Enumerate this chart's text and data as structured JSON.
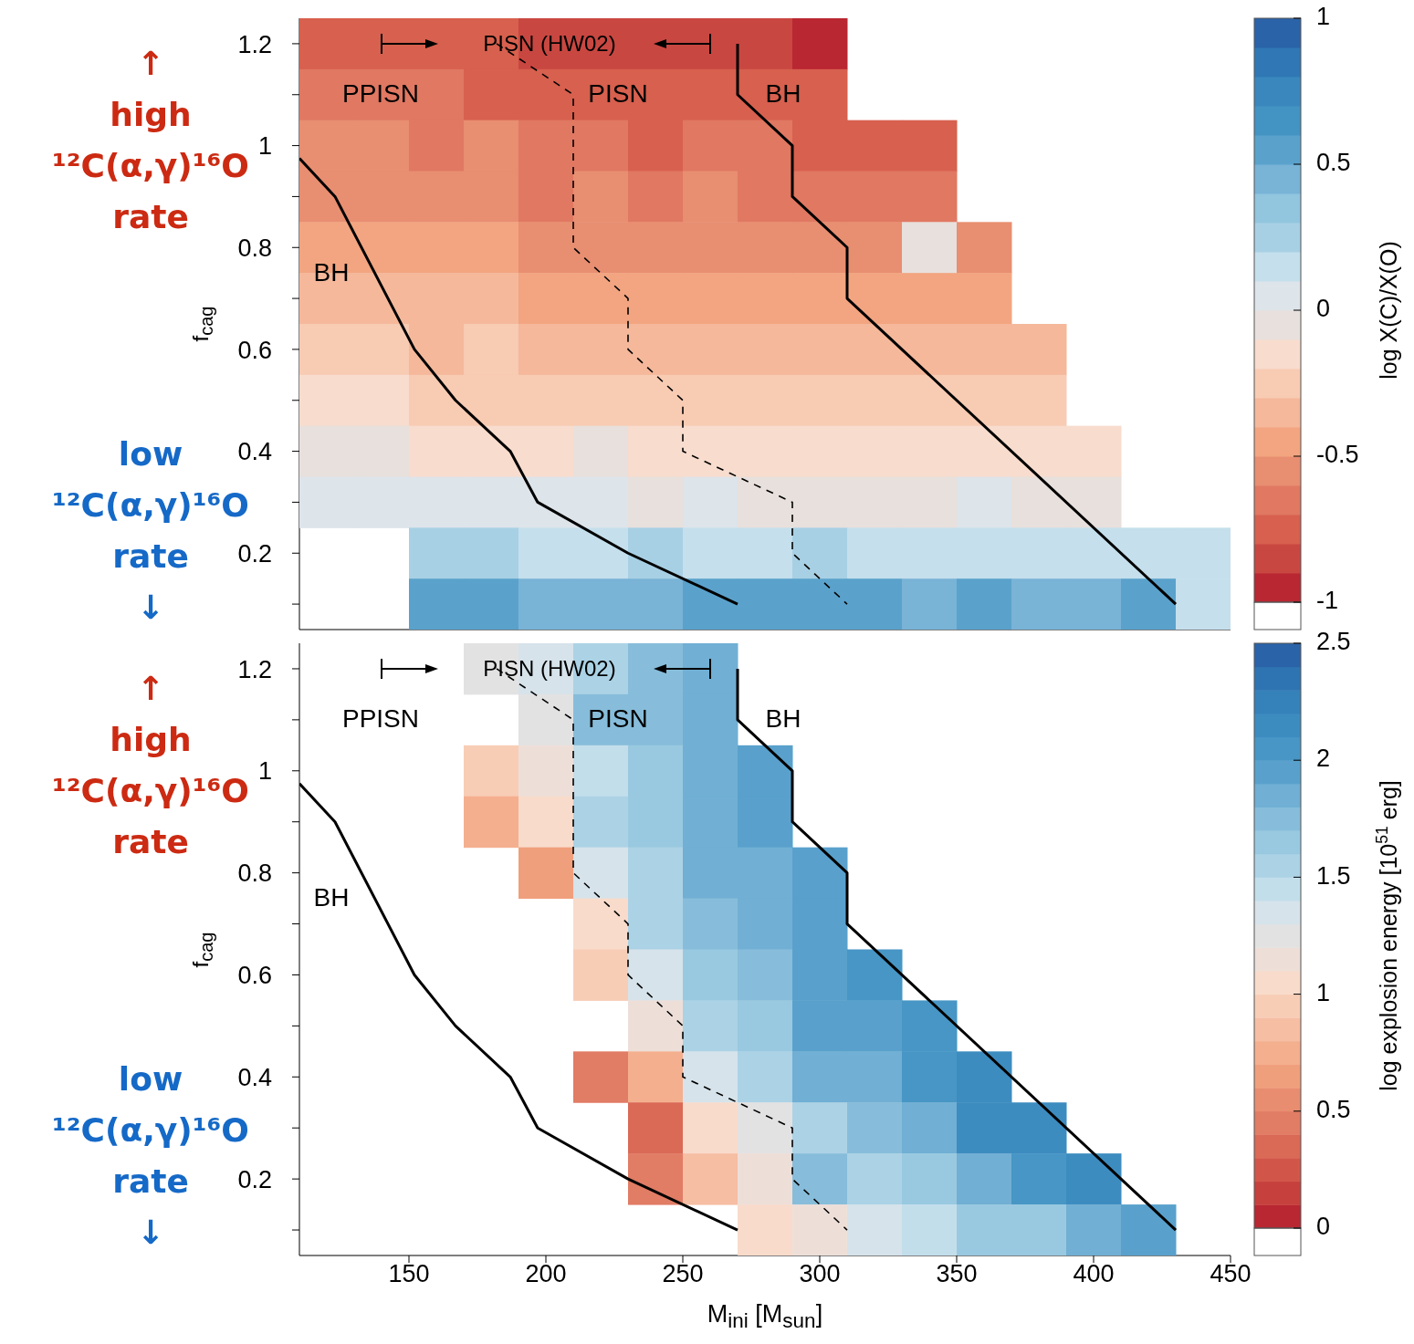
{
  "chart_data": [
    {
      "type": "heatmap",
      "ylabel": "f$_{cag}$",
      "clabel": "log X(C)/X(O)",
      "clim": [
        -1,
        1
      ],
      "cticks": [
        -1,
        -0.5,
        0,
        0.5,
        1
      ],
      "xlim": [
        110,
        450
      ],
      "ylim": [
        0.05,
        1.25
      ],
      "xticks": [
        150,
        200,
        250,
        300,
        350,
        400,
        450
      ],
      "yticks": [
        {
          "value": 0.1,
          "label": null
        },
        0.2,
        {
          "value": 0.3,
          "label": null
        },
        0.4,
        {
          "value": 0.5,
          "label": null
        },
        0.6,
        {
          "value": 0.7,
          "label": null
        },
        0.8,
        {
          "value": 0.9,
          "label": null
        },
        1,
        {
          "value": 1.1,
          "label": null
        },
        1.2
      ],
      "tick_labels": "y",
      "x": [
        120,
        140,
        160,
        180,
        200,
        220,
        240,
        260,
        280,
        300,
        320,
        340,
        360,
        380,
        400,
        420,
        440
      ],
      "y": [
        1.2,
        1.1,
        1.0,
        0.9,
        0.8,
        0.7,
        0.6,
        0.5,
        0.4,
        0.3,
        0.2,
        0.1
      ],
      "cells": [
        [
          -0.75,
          -0.75,
          -0.75,
          -0.75,
          -0.85,
          -0.85,
          -0.85,
          -0.85,
          -0.85,
          -0.95,
          null,
          null,
          null,
          null,
          null,
          null,
          null
        ],
        [
          -0.65,
          -0.65,
          -0.65,
          -0.75,
          -0.75,
          -0.75,
          -0.75,
          -0.75,
          -0.75,
          -0.75,
          null,
          null,
          null,
          null,
          null,
          null,
          null
        ],
        [
          -0.55,
          -0.55,
          -0.65,
          -0.55,
          -0.65,
          -0.65,
          -0.75,
          -0.65,
          -0.65,
          -0.75,
          -0.75,
          -0.75,
          null,
          null,
          null,
          null,
          null
        ],
        [
          -0.55,
          -0.55,
          -0.55,
          -0.55,
          -0.65,
          -0.55,
          -0.65,
          -0.55,
          -0.65,
          -0.65,
          -0.65,
          -0.65,
          null,
          null,
          null,
          null,
          null
        ],
        [
          -0.45,
          -0.45,
          -0.45,
          -0.45,
          -0.55,
          -0.55,
          -0.55,
          -0.55,
          -0.55,
          -0.55,
          -0.55,
          -0.05,
          -0.55,
          null,
          null,
          null,
          null
        ],
        [
          -0.35,
          -0.35,
          -0.35,
          -0.35,
          -0.45,
          -0.45,
          -0.45,
          -0.45,
          -0.45,
          -0.45,
          -0.45,
          -0.45,
          -0.45,
          null,
          null,
          null,
          null
        ],
        [
          -0.25,
          -0.25,
          -0.35,
          -0.25,
          -0.35,
          -0.35,
          -0.35,
          -0.35,
          -0.35,
          -0.35,
          -0.35,
          -0.35,
          -0.35,
          -0.35,
          null,
          null,
          null
        ],
        [
          -0.15,
          -0.15,
          -0.25,
          -0.25,
          -0.25,
          -0.25,
          -0.25,
          -0.25,
          -0.25,
          -0.25,
          -0.25,
          -0.25,
          -0.25,
          -0.25,
          null,
          null,
          null
        ],
        [
          -0.05,
          -0.05,
          -0.15,
          -0.15,
          -0.15,
          -0.05,
          -0.15,
          -0.15,
          -0.15,
          -0.15,
          -0.15,
          -0.15,
          -0.15,
          -0.15,
          -0.15,
          null,
          null
        ],
        [
          0.05,
          0.05,
          0.05,
          0.05,
          0.05,
          0.05,
          -0.05,
          0.05,
          -0.05,
          -0.05,
          -0.05,
          -0.05,
          0.05,
          -0.05,
          -0.05,
          null,
          null
        ],
        [
          null,
          null,
          0.25,
          0.25,
          0.15,
          0.15,
          0.25,
          0.15,
          0.15,
          0.25,
          0.15,
          0.15,
          0.15,
          0.15,
          0.15,
          0.15,
          0.15
        ],
        [
          null,
          null,
          0.55,
          0.55,
          0.45,
          0.45,
          0.45,
          0.55,
          0.55,
          0.55,
          0.55,
          0.45,
          0.55,
          0.45,
          0.45,
          0.55,
          0.15
        ]
      ],
      "series": [
        {
          "type": "line",
          "color": "#000000",
          "line_style": "solid",
          "x": [
            110,
            123,
            152,
            167,
            187,
            197,
            230,
            270
          ],
          "values": [
            0.975,
            0.9,
            0.6,
            0.5,
            0.4,
            0.3,
            0.2,
            0.1
          ]
        },
        {
          "type": "line",
          "color": "#000000",
          "line_style": "solid",
          "x": [
            270,
            270,
            290,
            290,
            310,
            310,
            430
          ],
          "values": [
            1.2,
            1.1,
            1.0,
            0.9,
            0.8,
            0.7,
            0.1
          ]
        },
        {
          "type": "line",
          "color": "#000000",
          "line_style": "dashed",
          "x": [
            182,
            210,
            210,
            230,
            230,
            250,
            250,
            290,
            290,
            310
          ],
          "values": [
            1.2,
            1.1,
            0.8,
            0.7,
            0.6,
            0.5,
            0.4,
            0.3,
            0.2,
            0.1
          ]
        }
      ],
      "annotations": [
        "PISN (HW02)",
        "PPISN",
        "PISN",
        "BH",
        "BH",
        "↑ high ¹²C(α,γ)¹⁶O rate",
        "low ¹²C(α,γ)¹⁶O rate ↓"
      ]
    },
    {
      "type": "heatmap",
      "xlabel": "M$_{ini}$ [M$_{sun}$]",
      "ylabel": "f$_{cag}$",
      "clabel": "log explosion energy [10$^{51}$ erg]",
      "clim": [
        0,
        2.5
      ],
      "cticks": [
        0,
        0.5,
        1,
        1.5,
        2,
        2.5
      ],
      "xlim": [
        110,
        450
      ],
      "ylim": [
        0.05,
        1.25
      ],
      "xticks": [
        150,
        200,
        250,
        300,
        350,
        400,
        450
      ],
      "yticks": [
        {
          "value": 0.1,
          "label": null
        },
        0.2,
        {
          "value": 0.3,
          "label": null
        },
        0.4,
        {
          "value": 0.5,
          "label": null
        },
        0.6,
        {
          "value": 0.7,
          "label": null
        },
        0.8,
        {
          "value": 0.9,
          "label": null
        },
        1,
        {
          "value": 1.1,
          "label": null
        },
        1.2
      ],
      "x": [
        120,
        140,
        160,
        180,
        200,
        220,
        240,
        260,
        280,
        300,
        320,
        340,
        360,
        380,
        400,
        420,
        440
      ],
      "y": [
        1.2,
        1.1,
        1.0,
        0.9,
        0.8,
        0.7,
        0.6,
        0.5,
        0.4,
        0.3,
        0.2,
        0.1
      ],
      "cells": [
        [
          null,
          null,
          null,
          1.25,
          1.35,
          1.55,
          1.75,
          1.85,
          null,
          null,
          null,
          null,
          null,
          null,
          null,
          null,
          null
        ],
        [
          null,
          null,
          null,
          null,
          1.25,
          1.75,
          1.75,
          1.85,
          null,
          null,
          null,
          null,
          null,
          null,
          null,
          null,
          null
        ],
        [
          null,
          null,
          null,
          0.95,
          1.15,
          1.45,
          1.65,
          1.85,
          1.95,
          null,
          null,
          null,
          null,
          null,
          null,
          null,
          null
        ],
        [
          null,
          null,
          null,
          0.75,
          1.05,
          1.55,
          1.65,
          1.85,
          1.95,
          null,
          null,
          null,
          null,
          null,
          null,
          null,
          null
        ],
        [
          null,
          null,
          null,
          null,
          0.65,
          1.35,
          1.55,
          1.85,
          1.85,
          1.95,
          null,
          null,
          null,
          null,
          null,
          null,
          null
        ],
        [
          null,
          null,
          null,
          null,
          null,
          1.05,
          1.55,
          1.75,
          1.85,
          1.95,
          null,
          null,
          null,
          null,
          null,
          null,
          null
        ],
        [
          null,
          null,
          null,
          null,
          null,
          0.95,
          1.35,
          1.65,
          1.75,
          1.95,
          2.05,
          null,
          null,
          null,
          null,
          null,
          null
        ],
        [
          null,
          null,
          null,
          null,
          null,
          null,
          1.15,
          1.55,
          1.65,
          1.95,
          1.95,
          2.05,
          null,
          null,
          null,
          null,
          null
        ],
        [
          null,
          null,
          null,
          null,
          null,
          0.45,
          0.75,
          1.35,
          1.55,
          1.85,
          1.85,
          2.05,
          2.15,
          null,
          null,
          null,
          null
        ],
        [
          null,
          null,
          null,
          null,
          null,
          null,
          0.35,
          1.05,
          1.25,
          1.55,
          1.75,
          1.85,
          2.15,
          2.15,
          null,
          null,
          null
        ],
        [
          null,
          null,
          null,
          null,
          null,
          null,
          0.45,
          0.85,
          1.15,
          1.75,
          1.55,
          1.65,
          1.85,
          2.05,
          2.15,
          null,
          null
        ],
        [
          null,
          null,
          null,
          null,
          null,
          null,
          null,
          null,
          1.05,
          1.15,
          1.35,
          1.45,
          1.65,
          1.65,
          1.85,
          1.95,
          null
        ]
      ],
      "series": [
        {
          "type": "line",
          "color": "#000000",
          "line_style": "solid",
          "x": [
            110,
            123,
            152,
            167,
            187,
            197,
            230,
            270
          ],
          "values": [
            0.975,
            0.9,
            0.6,
            0.5,
            0.4,
            0.3,
            0.2,
            0.1
          ]
        },
        {
          "type": "line",
          "color": "#000000",
          "line_style": "solid",
          "x": [
            270,
            270,
            290,
            290,
            310,
            310,
            430
          ],
          "values": [
            1.2,
            1.1,
            1.0,
            0.9,
            0.8,
            0.7,
            0.1
          ]
        },
        {
          "type": "line",
          "color": "#000000",
          "line_style": "dashed",
          "x": [
            182,
            210,
            210,
            230,
            230,
            250,
            250,
            290,
            290,
            310
          ],
          "values": [
            1.2,
            1.1,
            0.8,
            0.7,
            0.6,
            0.5,
            0.4,
            0.3,
            0.2,
            0.1
          ]
        }
      ],
      "annotations": [
        "PISN (HW02)",
        "PPISN",
        "PISN",
        "BH",
        "BH",
        "↑ high ¹²C(α,γ)¹⁶O rate",
        "low ¹²C(α,γ)¹⁶O rate ↓"
      ]
    }
  ]
}
